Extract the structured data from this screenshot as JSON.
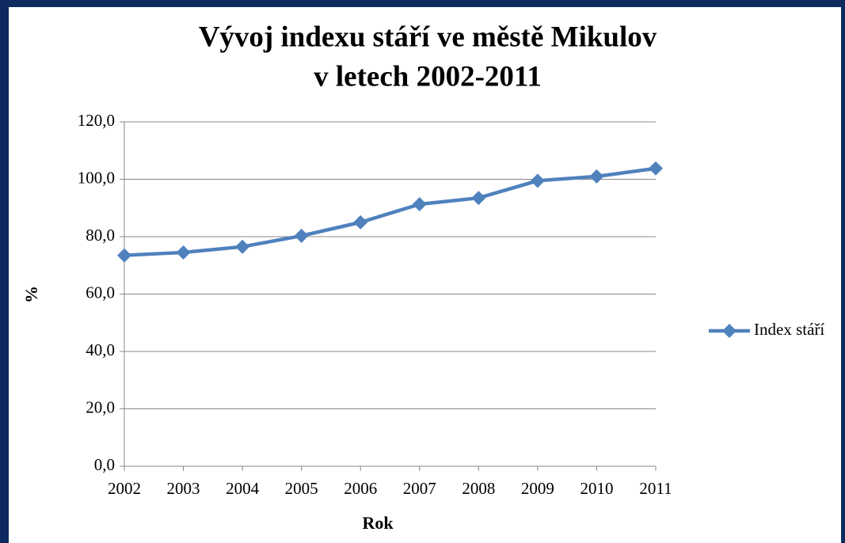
{
  "chart_data": {
    "type": "line",
    "title": [
      "Vývoj indexu stáří ve městě Mikulov",
      "v letech 2002-2011"
    ],
    "x_label": "Rok",
    "y_label": "%",
    "categories": [
      "2002",
      "2003",
      "2004",
      "2005",
      "2006",
      "2007",
      "2008",
      "2009",
      "2010",
      "2011"
    ],
    "series": [
      {
        "name": "Index stáří",
        "color": "#4f81bd",
        "values": [
          73.5,
          74.5,
          76.5,
          80.3,
          85.0,
          91.3,
          93.5,
          99.5,
          101.0,
          103.8
        ]
      }
    ],
    "ylim": [
      0,
      120
    ],
    "yticks": [
      {
        "value": 0,
        "label": "0,0"
      },
      {
        "value": 20,
        "label": "20,0"
      },
      {
        "value": 40,
        "label": "40,0"
      },
      {
        "value": 60,
        "label": "60,0"
      },
      {
        "value": 80,
        "label": "80,0"
      },
      {
        "value": 100,
        "label": "100,0"
      },
      {
        "value": 120,
        "label": "120,0"
      }
    ],
    "grid": true,
    "legend": "right"
  }
}
